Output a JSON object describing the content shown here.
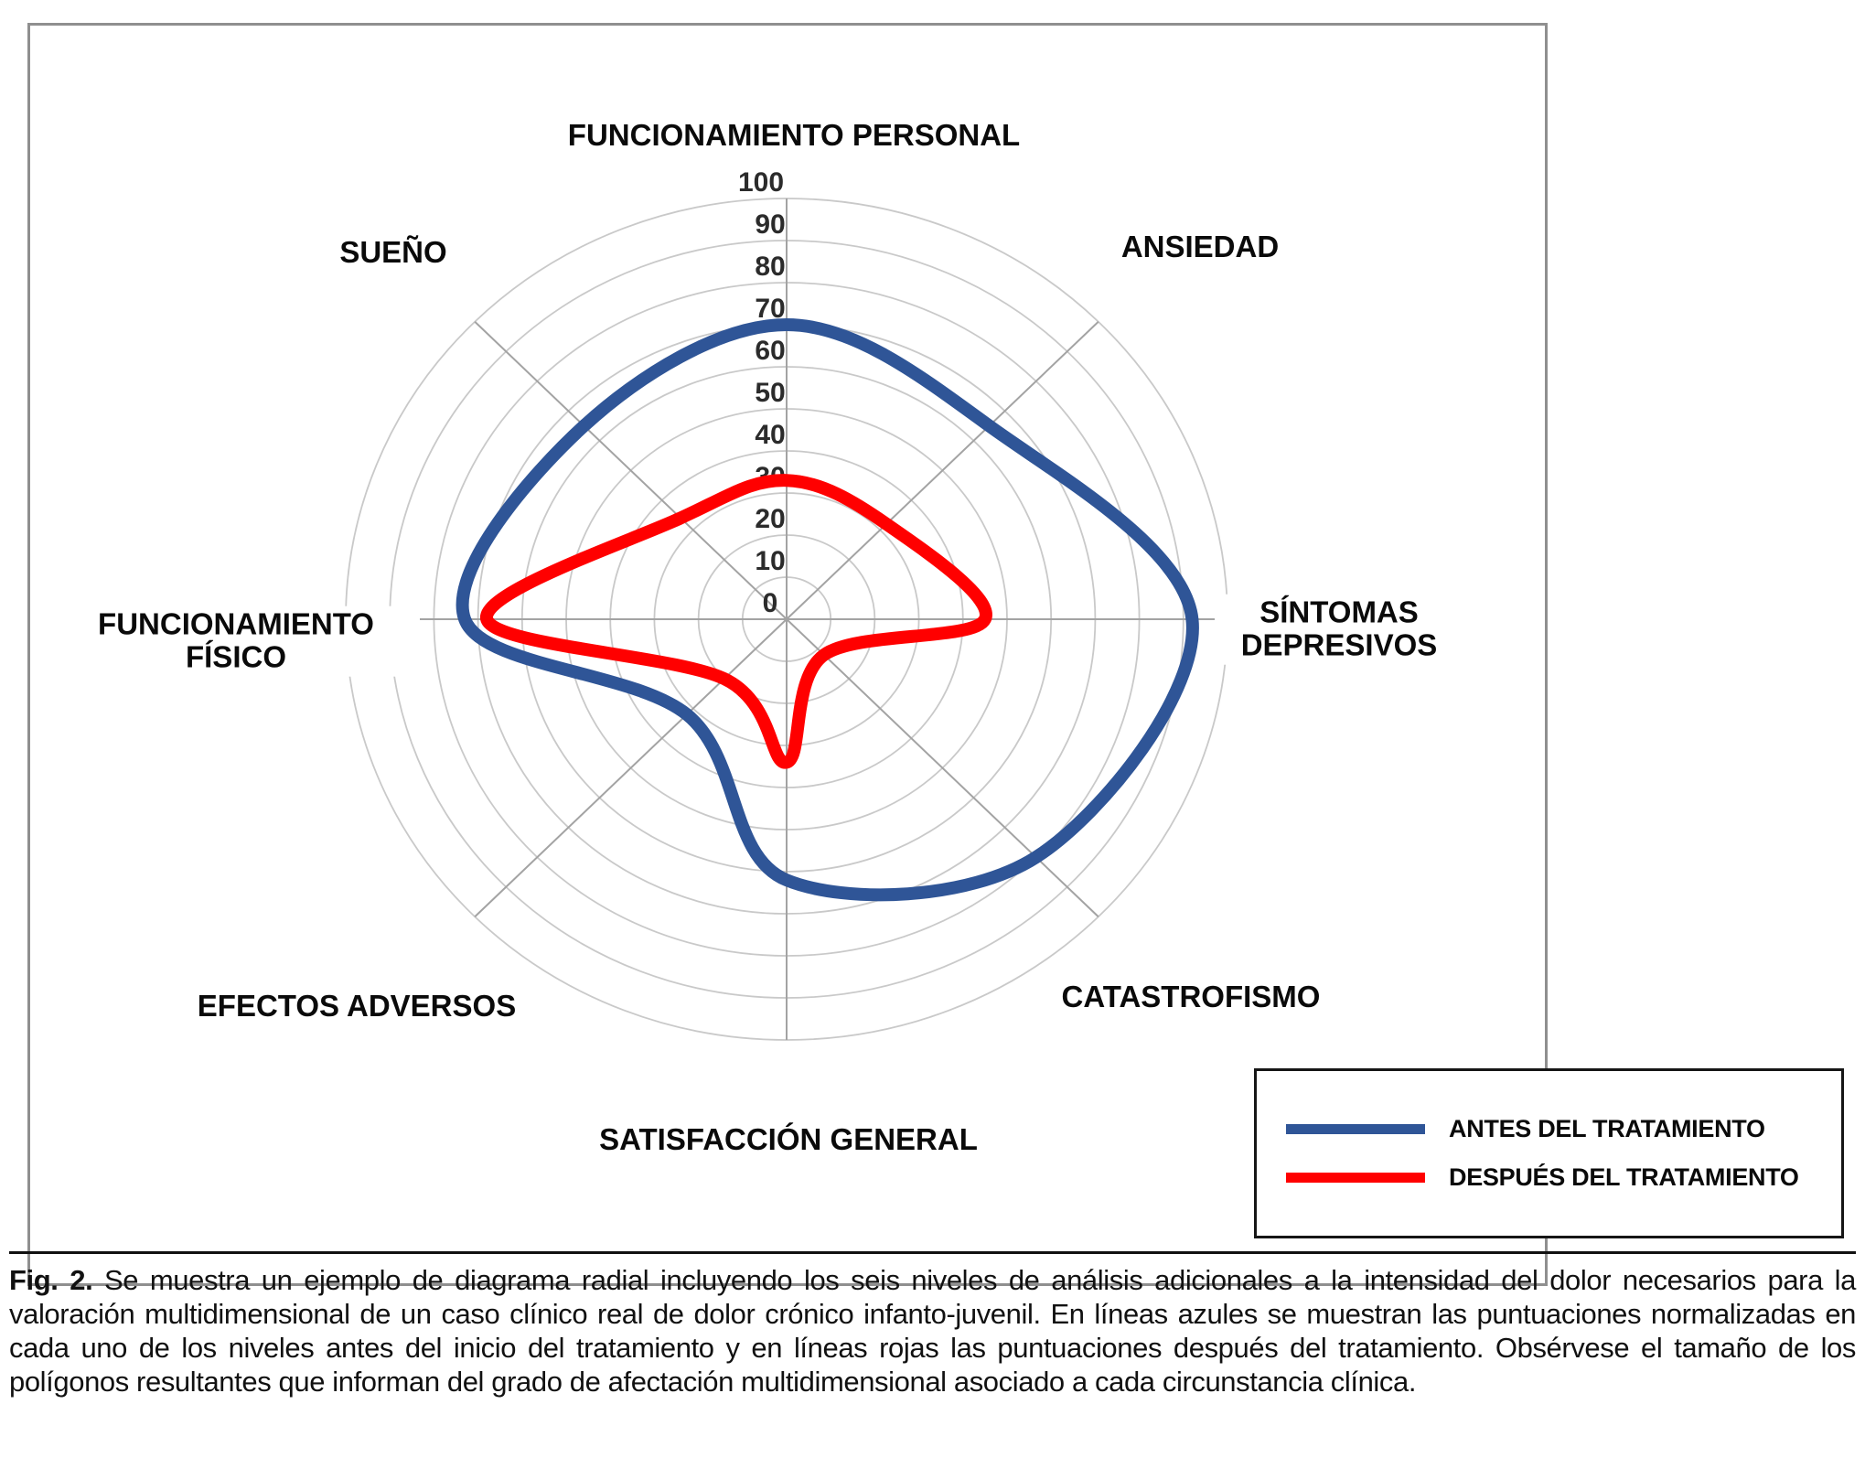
{
  "figure": {
    "caption_label": "Fig. 2.",
    "caption_text": " Se muestra un ejemplo de diagrama radial incluyendo los seis niveles de análisis adicionales a la intensidad del dolor necesarios para la valoración multidimensional de un caso clínico real de dolor crónico infanto-juvenil. En líneas azules se muestran las puntuaciones normalizadas en cada uno de los niveles antes del inicio del tratamiento y en líneas rojas las puntuaciones después del tratamiento. Obsérvese el tamaño de los polígonos resultantes que informan del grado de afectación multidimensional asociado a cada circunstancia clínica."
  },
  "legend": {
    "items": [
      {
        "label": "ANTES DEL TRATAMIENTO",
        "color": "#2F5597"
      },
      {
        "label": "DESPUÉS DEL TRATAMIENTO",
        "color": "#FF0000"
      }
    ]
  },
  "chart_data": {
    "type": "radar",
    "categories": [
      "FUNCIONAMIENTO PERSONAL",
      "ANSIEDAD",
      "SÍNTOMAS DEPRESIVOS",
      "CATASTROFISMO",
      "SATISFACCIÓN GENERAL",
      "EFECTOS ADVERSOS",
      "FUNCIONAMIENTO FÍSICO",
      "SUEÑO"
    ],
    "series": [
      {
        "name": "ANTES DEL TRATAMIENTO",
        "color": "#2F5597",
        "values": [
          70,
          65,
          92,
          80,
          62,
          32,
          73,
          65
        ]
      },
      {
        "name": "DESPUÉS DEL TRATAMIENTO",
        "color": "#FF0000",
        "values": [
          33,
          32,
          45,
          12,
          34,
          20,
          68,
          34
        ]
      }
    ],
    "radial_axis": {
      "min": 0,
      "max": 100,
      "tick_step": 10,
      "tick_labels": [
        "0",
        "10",
        "20",
        "30",
        "40",
        "50",
        "60",
        "70",
        "80",
        "90",
        "100"
      ]
    },
    "grid": true,
    "smooth": true,
    "legend_position": "bottom-right"
  }
}
